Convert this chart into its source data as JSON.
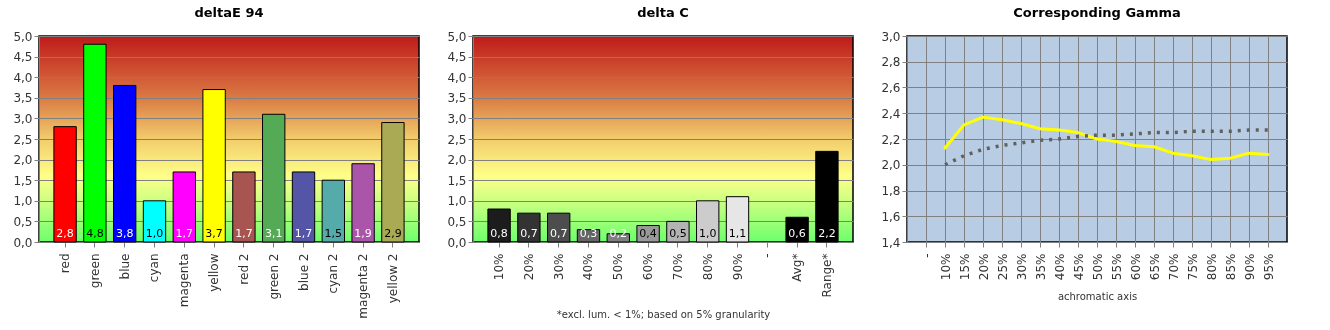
{
  "chart_data": [
    {
      "type": "bar",
      "title": "deltaE 94",
      "categories": [
        "red",
        "green",
        "blue",
        "cyan",
        "magenta",
        "yellow",
        "red 2",
        "green 2",
        "blue 2",
        "cyan 2",
        "magenta 2",
        "yellow 2"
      ],
      "values": [
        2.8,
        4.8,
        3.8,
        1.0,
        1.7,
        3.7,
        1.7,
        3.1,
        1.7,
        1.5,
        1.9,
        2.9
      ],
      "value_labels": [
        "2,8",
        "4,8",
        "3,8",
        "1,0",
        "1,7",
        "3,7",
        "1,7",
        "3,1",
        "1,7",
        "1,5",
        "1,9",
        "2,9"
      ],
      "colors": [
        "#ff0000",
        "#00ff00",
        "#0000ff",
        "#00ffff",
        "#ff00ff",
        "#ffff00",
        "#a85450",
        "#55aa55",
        "#5555a8",
        "#55aaaa",
        "#aa55aa",
        "#aaaa55"
      ],
      "ylim": [
        0,
        5
      ],
      "yticks": [
        {
          "value": 0,
          "label": "0,0"
        },
        {
          "value": 0.5,
          "label": "0,5"
        },
        {
          "value": 1,
          "label": "1,0"
        },
        {
          "value": 1.5,
          "label": "1,5"
        },
        {
          "value": 2,
          "label": "2,0"
        },
        {
          "value": 2.5,
          "label": "2,5"
        },
        {
          "value": 3,
          "label": "3,0"
        },
        {
          "value": 3.5,
          "label": "3,5"
        },
        {
          "value": 4,
          "label": "4,0"
        },
        {
          "value": 4.5,
          "label": "4,5"
        },
        {
          "value": 5,
          "label": "5,0"
        }
      ],
      "grid": "y",
      "legend": false
    },
    {
      "type": "bar",
      "title": "delta C",
      "categories": [
        "10%",
        "20%",
        "30%",
        "40%",
        "50%",
        "60%",
        "70%",
        "80%",
        "90%",
        "-",
        "Avg*",
        "Range*"
      ],
      "values": [
        0.8,
        0.7,
        0.7,
        0.3,
        0.2,
        0.4,
        0.5,
        1.0,
        1.1,
        null,
        0.6,
        2.2
      ],
      "value_labels": [
        "0,8",
        "0,7",
        "0,7",
        "0,3",
        "0,2",
        "0,4",
        "0,5",
        "1,0",
        "1,1",
        null,
        "0,6",
        "2,2"
      ],
      "colors": [
        "#1c1c1c",
        "#333333",
        "#4d4d4d",
        "#666666",
        "#808080",
        "#999999",
        "#b3b3b3",
        "#cccccc",
        "#e6e6e6",
        "#000000",
        "#000000",
        "#000000"
      ],
      "ylim": [
        0,
        5
      ],
      "yticks": [
        {
          "value": 0,
          "label": "0,0"
        },
        {
          "value": 0.5,
          "label": "0,5"
        },
        {
          "value": 1,
          "label": "1,0"
        },
        {
          "value": 1.5,
          "label": "1,5"
        },
        {
          "value": 2,
          "label": "2,0"
        },
        {
          "value": 2.5,
          "label": "2,5"
        },
        {
          "value": 3,
          "label": "3,0"
        },
        {
          "value": 3.5,
          "label": "3,5"
        },
        {
          "value": 4,
          "label": "4,0"
        },
        {
          "value": 4.5,
          "label": "4,5"
        },
        {
          "value": 5,
          "label": "5,0"
        }
      ],
      "annotations": [
        "*excl. lum. < 1%; based on 5% granularity"
      ],
      "grid": "y",
      "legend": false
    },
    {
      "type": "line",
      "title": "Corresponding Gamma",
      "xlabel": "achromatic axis",
      "categories": [
        "-",
        "10%",
        "15%",
        "20%",
        "25%",
        "30%",
        "35%",
        "40%",
        "45%",
        "50%",
        "55%",
        "60%",
        "65%",
        "70%",
        "75%",
        "80%",
        "85%",
        "90%",
        "95%"
      ],
      "series": [
        {
          "color": "#ffff00",
          "line_style": "solid",
          "values": [
            null,
            2.13,
            2.31,
            2.37,
            2.35,
            2.32,
            2.28,
            2.27,
            2.25,
            2.2,
            2.18,
            2.15,
            2.14,
            2.09,
            2.07,
            2.04,
            2.05,
            2.09,
            2.08
          ]
        },
        {
          "color": "#606060",
          "line_style": "dotted",
          "values": [
            null,
            2.0,
            2.07,
            2.12,
            2.15,
            2.17,
            2.19,
            2.2,
            2.22,
            2.23,
            2.23,
            2.24,
            2.25,
            2.25,
            2.26,
            2.26,
            2.26,
            2.27,
            2.27
          ]
        }
      ],
      "ylim": [
        1.4,
        3.0
      ],
      "yticks": [
        {
          "value": 1.4,
          "label": "1,4"
        },
        {
          "value": 1.6,
          "label": "1,6"
        },
        {
          "value": 1.8,
          "label": "1,8"
        },
        {
          "value": 2.0,
          "label": "2,0"
        },
        {
          "value": 2.2,
          "label": "2,2"
        },
        {
          "value": 2.4,
          "label": "2,4"
        },
        {
          "value": 2.6,
          "label": "2,6"
        },
        {
          "value": 2.8,
          "label": "2,8"
        },
        {
          "value": 3.0,
          "label": "3,0"
        }
      ],
      "grid": true,
      "legend": false,
      "marker": "none"
    }
  ]
}
